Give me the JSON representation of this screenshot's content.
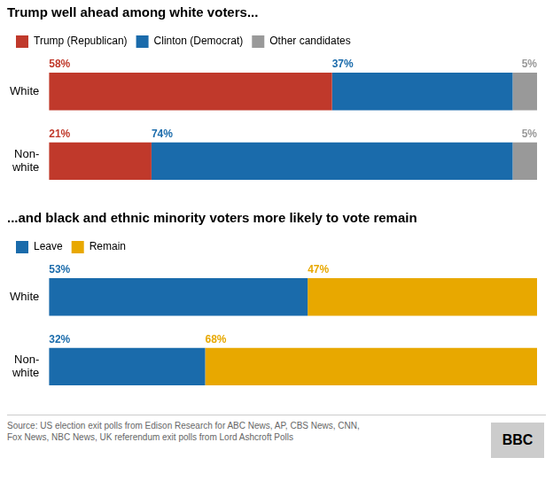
{
  "chart_data": [
    {
      "type": "bar",
      "orientation": "horizontal",
      "stacked": true,
      "title": "Trump well ahead among white voters...",
      "categories": [
        "White",
        "Non-\nwhite"
      ],
      "series": [
        {
          "name": "Trump (Republican)",
          "color": "#c0392b",
          "values": [
            58,
            21
          ],
          "value_labels": [
            "58%",
            "21%"
          ]
        },
        {
          "name": "Clinton (Democrat)",
          "color": "#1a6bab",
          "values": [
            37,
            74
          ],
          "value_labels": [
            "37%",
            "74%"
          ]
        },
        {
          "name": "Other candidates",
          "color": "#999999",
          "values": [
            5,
            5
          ],
          "value_labels": [
            "5%",
            "5%"
          ]
        }
      ],
      "xlim": [
        0,
        100
      ],
      "grid": false,
      "legend": "top",
      "data_labels": true,
      "tick_labels": "y"
    },
    {
      "type": "bar",
      "orientation": "horizontal",
      "stacked": true,
      "title": "...and black and ethnic minority voters more likely to vote remain",
      "categories": [
        "White",
        "Non-\nwhite"
      ],
      "series": [
        {
          "name": "Leave",
          "color": "#1a6bab",
          "values": [
            53,
            32
          ],
          "value_labels": [
            "53%",
            "32%"
          ]
        },
        {
          "name": "Remain",
          "color": "#e8a800",
          "values": [
            47,
            68
          ],
          "value_labels": [
            "47%",
            "68%"
          ]
        }
      ],
      "xlim": [
        0,
        100
      ],
      "grid": false,
      "legend": "top",
      "data_labels": true,
      "tick_labels": "y",
      "annotations": [
        "Source: US election exit polls from Edison Research for ABC News, AP, CBS News, CNN,\nFox News, NBC News, UK referendum exit polls from Lord Ashcroft Polls",
        "BBC"
      ]
    }
  ]
}
